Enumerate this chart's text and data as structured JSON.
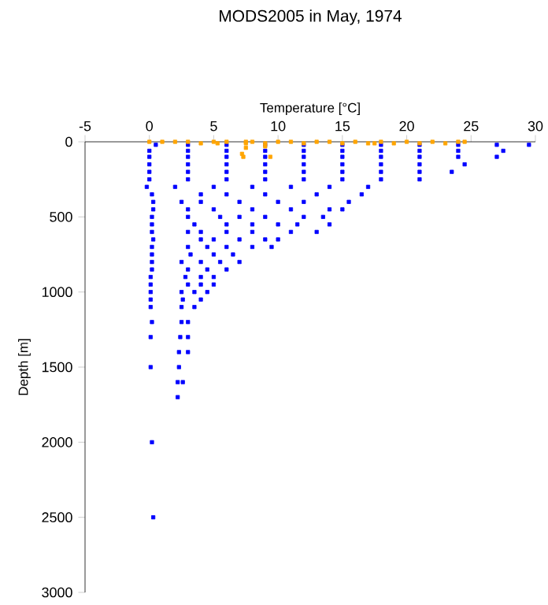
{
  "chart_data": {
    "type": "scatter",
    "title": "MODS2005 in May, 1974",
    "xlabel": "Temperature [°C]",
    "ylabel": "Depth [m]",
    "xlim": [
      -5,
      30
    ],
    "ylim": [
      3000,
      0
    ],
    "xticks": [
      -5,
      0,
      5,
      10,
      15,
      20,
      25,
      30
    ],
    "yticks": [
      0,
      500,
      1000,
      1500,
      2000,
      2500,
      3000
    ],
    "grid": false,
    "marker": "square",
    "series": [
      {
        "color": "#0000ff",
        "x": [
          0.5,
          3,
          6,
          9,
          12,
          15,
          18,
          21,
          24,
          27,
          29.5,
          0,
          3,
          6,
          9,
          12,
          15,
          18,
          21,
          24,
          27.5,
          0,
          3,
          6,
          9,
          12,
          15,
          18,
          21,
          24,
          27,
          0,
          3,
          6,
          9,
          12,
          15,
          18,
          21,
          24.5,
          0,
          3,
          6,
          9,
          12,
          15,
          18,
          21,
          23.5,
          0,
          3,
          6,
          9,
          12,
          15,
          18,
          21,
          -0.2,
          2,
          5,
          8,
          11,
          14,
          17,
          0.2,
          4,
          6,
          9,
          13,
          16.5,
          0.3,
          2.5,
          4,
          7,
          10,
          12,
          15.5,
          0.3,
          3,
          5,
          8,
          11,
          14,
          15,
          0.2,
          3,
          5.5,
          7,
          9,
          12,
          13.5,
          0.2,
          3.5,
          6,
          8,
          10,
          11.5,
          14,
          0.2,
          3,
          4,
          6,
          8,
          11,
          13,
          0.3,
          4,
          5,
          7,
          9,
          10,
          0.2,
          3,
          4.5,
          6,
          8,
          9.5,
          0.2,
          3.2,
          5,
          6.5,
          0.2,
          2.5,
          4,
          5.5,
          7,
          0.2,
          3,
          4.5,
          6,
          0.1,
          2.8,
          4,
          5,
          0.1,
          3,
          4,
          5,
          0.1,
          2.5,
          3.5,
          4.5,
          0.1,
          2.6,
          4,
          0.1,
          2.5,
          3.5,
          0.2,
          2.5,
          3,
          0.1,
          2.4,
          3,
          2.3,
          3,
          0.1,
          2.3,
          2.2,
          2.6,
          2.2,
          0.2,
          0.3
        ],
        "values": [
          20,
          20,
          20,
          20,
          20,
          20,
          20,
          20,
          20,
          20,
          20,
          60,
          60,
          60,
          60,
          60,
          60,
          60,
          60,
          60,
          60,
          100,
          100,
          100,
          100,
          100,
          100,
          100,
          100,
          100,
          100,
          150,
          150,
          150,
          150,
          150,
          150,
          150,
          150,
          150,
          200,
          200,
          200,
          200,
          200,
          200,
          200,
          200,
          200,
          250,
          250,
          250,
          250,
          250,
          250,
          250,
          250,
          300,
          300,
          300,
          300,
          300,
          300,
          300,
          350,
          350,
          350,
          350,
          350,
          350,
          400,
          400,
          400,
          400,
          400,
          400,
          400,
          450,
          450,
          450,
          450,
          450,
          450,
          450,
          500,
          500,
          500,
          500,
          500,
          500,
          500,
          550,
          550,
          550,
          550,
          550,
          550,
          550,
          600,
          600,
          600,
          600,
          600,
          600,
          600,
          650,
          650,
          650,
          650,
          650,
          650,
          700,
          700,
          700,
          700,
          700,
          700,
          750,
          750,
          750,
          750,
          800,
          800,
          800,
          800,
          800,
          850,
          850,
          850,
          850,
          900,
          900,
          900,
          900,
          950,
          950,
          950,
          950,
          1000,
          1000,
          1000,
          1000,
          1050,
          1050,
          1050,
          1100,
          1100,
          1100,
          1200,
          1200,
          1200,
          1300,
          1300,
          1300,
          1400,
          1400,
          1500,
          1500,
          1600,
          1600,
          1700,
          2000,
          2500
        ]
      },
      {
        "color": "#ffa500",
        "x": [
          0,
          1,
          2,
          3,
          4,
          5,
          5.3,
          6,
          7.5,
          7.5,
          8,
          9,
          10,
          11,
          12,
          13,
          14,
          15,
          16,
          17,
          17.5,
          18,
          19,
          20,
          21,
          22,
          23,
          24,
          24.5,
          7.2,
          7.3,
          9.4,
          7.5,
          9
        ],
        "values": [
          0,
          0,
          0,
          0,
          10,
          0,
          10,
          0,
          0,
          10,
          0,
          10,
          0,
          0,
          10,
          0,
          0,
          10,
          0,
          10,
          10,
          0,
          10,
          0,
          10,
          0,
          10,
          0,
          0,
          80,
          100,
          100,
          40,
          30
        ]
      }
    ]
  }
}
